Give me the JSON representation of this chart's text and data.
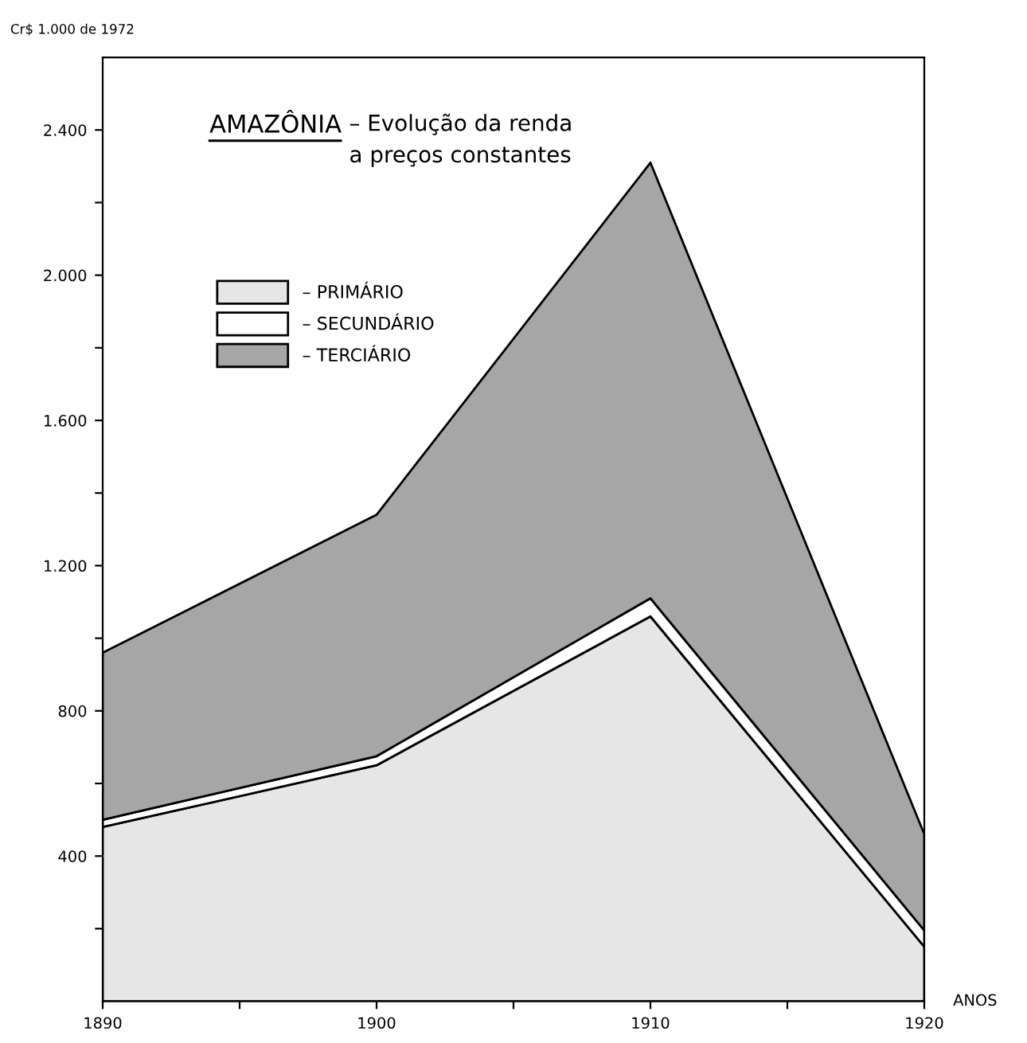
{
  "chart_data": {
    "type": "area",
    "stacked": true,
    "title": "AMAZÔNIA",
    "subtitle": "– Evolução da renda\na preços constantes",
    "ylabel": "Cr$ 1.000 de 1972",
    "xlabel": "ANOS",
    "x": [
      1890,
      1900,
      1910,
      1920
    ],
    "series": [
      {
        "name": "– PRIMÁRIO",
        "color": "#e6e6e6",
        "values": [
          480,
          650,
          1060,
          150
        ]
      },
      {
        "name": "– SECUNDÁRIO",
        "color": "#ffffff",
        "values": [
          20,
          25,
          50,
          45
        ]
      },
      {
        "name": "– TERCIÁRIO",
        "color": "#a6a6a6",
        "values": [
          460,
          665,
          1200,
          265
        ]
      }
    ],
    "xlim": [
      1890,
      1920
    ],
    "ylim": [
      0,
      2600
    ],
    "xticks": [
      1890,
      {
        "value": 1895,
        "label": null
      },
      1900,
      {
        "value": 1905,
        "label": null
      },
      1910,
      {
        "value": 1915,
        "label": null
      },
      1920
    ],
    "yticks": [
      {
        "value": 200,
        "label": null
      },
      400,
      {
        "value": 600,
        "label": null
      },
      800,
      {
        "value": 1000,
        "label": null
      },
      {
        "value": 1200,
        "label": "1.200"
      },
      {
        "value": 1400,
        "label": null
      },
      {
        "value": 1600,
        "label": "1.600"
      },
      {
        "value": 1800,
        "label": null
      },
      {
        "value": 2000,
        "label": "2.000"
      },
      {
        "value": 2200,
        "label": null
      },
      {
        "value": 2400,
        "label": "2.400"
      }
    ],
    "legend": "top left",
    "grid": false
  }
}
